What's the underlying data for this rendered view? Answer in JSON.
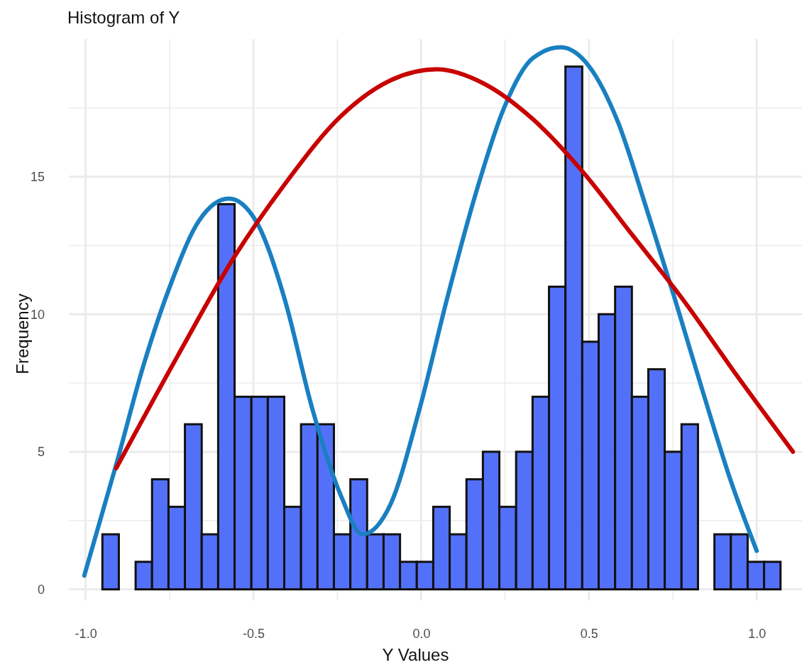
{
  "chart_data": {
    "type": "histogram",
    "title": "Histogram of Y",
    "xlabel": "Y Values",
    "ylabel": "Frequency",
    "bins": [
      -0.95,
      -0.901,
      -0.851,
      -0.802,
      -0.753,
      -0.704,
      -0.654,
      -0.605,
      -0.556,
      -0.506,
      -0.457,
      -0.408,
      -0.358,
      -0.309,
      -0.26,
      -0.211,
      -0.161,
      -0.112,
      -0.063,
      -0.013,
      0.036,
      0.085,
      0.135,
      0.184,
      0.233,
      0.283,
      0.332,
      0.381,
      0.43,
      0.48,
      0.529,
      0.578,
      0.628,
      0.677,
      0.726,
      0.776,
      0.825,
      0.874,
      0.923,
      0.973,
      1.022,
      1.071
    ],
    "values": [
      2,
      0,
      1,
      4,
      3,
      6,
      2,
      14,
      7,
      7,
      7,
      3,
      6,
      6,
      2,
      4,
      2,
      2,
      1,
      1,
      3,
      2,
      4,
      5,
      3,
      5,
      7,
      11,
      19,
      9,
      10,
      11,
      7,
      8,
      5,
      6,
      0,
      2,
      2,
      1,
      1
    ],
    "color": "#4a69f8",
    "series": [
      {
        "type": "line",
        "color": "#1a7fc1",
        "x": [
          -1.004,
          -0.905,
          -0.831,
          -0.746,
          -0.662,
          -0.573,
          -0.493,
          -0.408,
          -0.323,
          -0.239,
          -0.175,
          -0.091,
          -0.006,
          0.078,
          0.163,
          0.247,
          0.332,
          0.416,
          0.501,
          0.586,
          0.67,
          0.755,
          0.839,
          0.924,
          1.0
        ],
        "values": [
          0.5,
          4.7,
          8.0,
          11.1,
          13.4,
          14.2,
          13.4,
          10.6,
          6.5,
          3.4,
          2.0,
          3.1,
          6.5,
          10.6,
          14.4,
          17.5,
          19.3,
          19.7,
          19.0,
          17.0,
          13.9,
          10.6,
          7.2,
          3.9,
          1.4
        ]
      },
      {
        "type": "line",
        "color": "#c80000",
        "x": [
          -0.909,
          -0.725,
          -0.556,
          -0.408,
          -0.239,
          -0.091,
          0.047,
          0.184,
          0.332,
          0.48,
          0.628,
          0.776,
          0.945,
          1.108
        ],
        "values": [
          4.4,
          8.5,
          12.1,
          14.7,
          17.2,
          18.5,
          18.9,
          18.4,
          17.1,
          15.2,
          12.9,
          10.6,
          7.7,
          5.0
        ]
      }
    ],
    "xlim": [
      -1.05,
      1.135
    ],
    "ylim": [
      -0.4,
      20
    ],
    "xticks": [
      {
        "value": -1.0,
        "label": "-1.0"
      },
      {
        "value": -0.75,
        "label": null
      },
      {
        "value": -0.5,
        "label": "-0.5"
      },
      {
        "value": -0.25,
        "label": null
      },
      {
        "value": 0,
        "label": "0.0"
      },
      {
        "value": 0.25,
        "label": null
      },
      {
        "value": 0.5,
        "label": "0.5"
      },
      {
        "value": 0.75,
        "label": null
      },
      {
        "value": 1.0,
        "label": "1.0"
      }
    ],
    "yticks": [
      0,
      {
        "value": 2.5,
        "label": null
      },
      5,
      {
        "value": 7.5,
        "label": null
      },
      10,
      {
        "value": 12.5,
        "label": null
      },
      15,
      {
        "value": 17.5,
        "label": null
      }
    ],
    "grid": true
  }
}
